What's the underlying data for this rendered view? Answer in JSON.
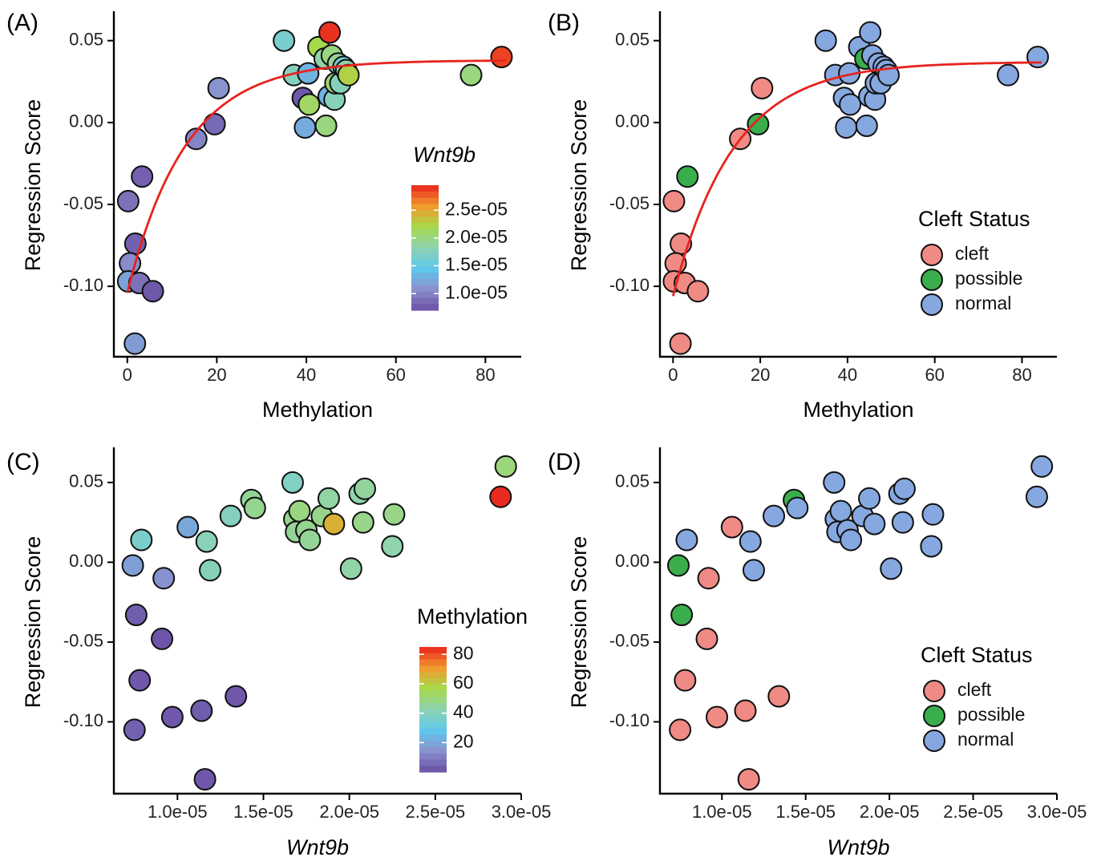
{
  "colors": {
    "cleft": "#f08a84",
    "possible": "#3aae4c",
    "normal": "#86a8e0",
    "fit_line": "#e8221e",
    "rainbow": [
      "#6a4fa5",
      "#8a90cc",
      "#5fc8ee",
      "#8fd3b0",
      "#a6d94a",
      "#f39a2c",
      "#e8221e"
    ]
  },
  "chart_data": [
    {
      "panel_label": "(A)",
      "type": "scatter",
      "xlabel": "Methylation",
      "ylabel": "Regression Score",
      "xlim": [
        -3,
        88
      ],
      "ylim": [
        -0.143,
        0.066
      ],
      "x_ticks": [
        0,
        20,
        40,
        60,
        80
      ],
      "x_tick_labels": [
        "0",
        "20",
        "40",
        "60",
        "80"
      ],
      "y_ticks": [
        0.05,
        0.0,
        -0.05,
        -0.1
      ],
      "y_tick_labels": [
        "0.05",
        "0.00",
        "-0.05",
        "-0.10"
      ],
      "fit_curve": {
        "y_max": 0.038,
        "y_min": -0.104,
        "rate": 0.077
      },
      "color_by": "Wnt9b",
      "legend": {
        "title": "Wnt9b",
        "type": "colorbar",
        "range": [
          7e-06,
          2.95e-05
        ],
        "tick_values": [
          2.5e-05,
          2e-05,
          1.5e-05,
          1e-05
        ],
        "tick_labels": [
          "2.5e-05",
          "2.0e-05",
          "1.5e-05",
          "1.0e-05"
        ]
      },
      "points": [
        {
          "x": 0.2,
          "y": -0.048,
          "wnt9b": 9e-06
        },
        {
          "x": 3.3,
          "y": -0.033,
          "wnt9b": 8e-06
        },
        {
          "x": 1.8,
          "y": -0.074,
          "wnt9b": 8e-06
        },
        {
          "x": 0.6,
          "y": -0.086,
          "wnt9b": 1.05e-05
        },
        {
          "x": 0.2,
          "y": -0.097,
          "wnt9b": 1.2e-05
        },
        {
          "x": 2.7,
          "y": -0.098,
          "wnt9b": 9e-06
        },
        {
          "x": 5.7,
          "y": -0.103,
          "wnt9b": 7.5e-06
        },
        {
          "x": 1.7,
          "y": -0.135,
          "wnt9b": 1.15e-05
        },
        {
          "x": 15.4,
          "y": -0.01,
          "wnt9b": 1e-05
        },
        {
          "x": 19.5,
          "y": -0.001,
          "wnt9b": 8.5e-06
        },
        {
          "x": 20.4,
          "y": 0.021,
          "wnt9b": 1.1e-05
        },
        {
          "x": 35.0,
          "y": 0.05,
          "wnt9b": 1.65e-05
        },
        {
          "x": 37.2,
          "y": 0.029,
          "wnt9b": 1.75e-05
        },
        {
          "x": 39.2,
          "y": 0.015,
          "wnt9b": 7.5e-06
        },
        {
          "x": 39.7,
          "y": -0.003,
          "wnt9b": 1.25e-05
        },
        {
          "x": 40.4,
          "y": 0.03,
          "wnt9b": 1.3e-05
        },
        {
          "x": 40.6,
          "y": 0.011,
          "wnt9b": 2.1e-05
        },
        {
          "x": 42.7,
          "y": 0.046,
          "wnt9b": 2.2e-05
        },
        {
          "x": 44.1,
          "y": 0.039,
          "wnt9b": 1.85e-05
        },
        {
          "x": 44.4,
          "y": -0.002,
          "wnt9b": 2e-05
        },
        {
          "x": 45.0,
          "y": 0.016,
          "wnt9b": 1.3e-05
        },
        {
          "x": 45.2,
          "y": 0.055,
          "wnt9b": 2.9e-05
        },
        {
          "x": 45.7,
          "y": 0.041,
          "wnt9b": 2e-05
        },
        {
          "x": 46.3,
          "y": 0.014,
          "wnt9b": 1.75e-05
        },
        {
          "x": 46.5,
          "y": 0.024,
          "wnt9b": 2.05e-05
        },
        {
          "x": 47.1,
          "y": 0.036,
          "wnt9b": 1.9e-05
        },
        {
          "x": 47.6,
          "y": 0.024,
          "wnt9b": 1.75e-05
        },
        {
          "x": 48.3,
          "y": 0.034,
          "wnt9b": 1.6e-05
        },
        {
          "x": 48.9,
          "y": 0.032,
          "wnt9b": 1.85e-05
        },
        {
          "x": 49.4,
          "y": 0.029,
          "wnt9b": 2.25e-05
        },
        {
          "x": 76.8,
          "y": 0.029,
          "wnt9b": 2e-05
        },
        {
          "x": 83.6,
          "y": 0.04,
          "wnt9b": 2.85e-05
        }
      ]
    },
    {
      "panel_label": "(B)",
      "type": "scatter",
      "xlabel": "Methylation",
      "ylabel": "Regression Score",
      "xlim": [
        -3,
        88
      ],
      "ylim": [
        -0.143,
        0.066
      ],
      "x_ticks": [
        0,
        20,
        40,
        60,
        80
      ],
      "x_tick_labels": [
        "0",
        "20",
        "40",
        "60",
        "80"
      ],
      "y_ticks": [
        0.05,
        0.0,
        -0.05,
        -0.1
      ],
      "y_tick_labels": [
        "0.05",
        "0.00",
        "-0.05",
        "-0.10"
      ],
      "fit_curve": {
        "y_max": 0.037,
        "y_min": -0.106,
        "rate": 0.072
      },
      "color_by": "Cleft Status",
      "legend": {
        "title": "Cleft Status",
        "type": "categorical",
        "entries": [
          {
            "label": "cleft",
            "status": "cleft"
          },
          {
            "label": "possible",
            "status": "possible"
          },
          {
            "label": "normal",
            "status": "normal"
          }
        ]
      },
      "points": [
        {
          "x": 0.2,
          "y": -0.048,
          "status": "cleft"
        },
        {
          "x": 3.3,
          "y": -0.033,
          "status": "possible"
        },
        {
          "x": 1.8,
          "y": -0.074,
          "status": "cleft"
        },
        {
          "x": 0.6,
          "y": -0.086,
          "status": "cleft"
        },
        {
          "x": 0.2,
          "y": -0.097,
          "status": "cleft"
        },
        {
          "x": 2.7,
          "y": -0.098,
          "status": "cleft"
        },
        {
          "x": 5.7,
          "y": -0.103,
          "status": "cleft"
        },
        {
          "x": 1.7,
          "y": -0.135,
          "status": "cleft"
        },
        {
          "x": 15.4,
          "y": -0.01,
          "status": "cleft"
        },
        {
          "x": 19.5,
          "y": -0.001,
          "status": "possible"
        },
        {
          "x": 20.4,
          "y": 0.021,
          "status": "cleft"
        },
        {
          "x": 35.0,
          "y": 0.05,
          "status": "normal"
        },
        {
          "x": 37.2,
          "y": 0.029,
          "status": "normal"
        },
        {
          "x": 39.2,
          "y": 0.015,
          "status": "normal"
        },
        {
          "x": 39.7,
          "y": -0.003,
          "status": "normal"
        },
        {
          "x": 40.4,
          "y": 0.03,
          "status": "normal"
        },
        {
          "x": 40.6,
          "y": 0.011,
          "status": "normal"
        },
        {
          "x": 42.7,
          "y": 0.046,
          "status": "normal"
        },
        {
          "x": 44.1,
          "y": 0.039,
          "status": "possible"
        },
        {
          "x": 44.4,
          "y": -0.002,
          "status": "normal"
        },
        {
          "x": 45.0,
          "y": 0.016,
          "status": "normal"
        },
        {
          "x": 45.2,
          "y": 0.055,
          "status": "normal"
        },
        {
          "x": 45.7,
          "y": 0.041,
          "status": "normal"
        },
        {
          "x": 46.3,
          "y": 0.014,
          "status": "normal"
        },
        {
          "x": 46.5,
          "y": 0.024,
          "status": "normal"
        },
        {
          "x": 47.1,
          "y": 0.036,
          "status": "normal"
        },
        {
          "x": 47.6,
          "y": 0.024,
          "status": "normal"
        },
        {
          "x": 48.3,
          "y": 0.034,
          "status": "normal"
        },
        {
          "x": 48.9,
          "y": 0.032,
          "status": "normal"
        },
        {
          "x": 49.4,
          "y": 0.029,
          "status": "normal"
        },
        {
          "x": 76.8,
          "y": 0.029,
          "status": "normal"
        },
        {
          "x": 83.6,
          "y": 0.04,
          "status": "normal"
        }
      ]
    },
    {
      "panel_label": "(C)",
      "type": "scatter",
      "xlabel": "Wnt9b",
      "ylabel": "Regression Score",
      "xlim": [
        6.3e-06,
        3e-05
      ],
      "ylim": [
        -0.145,
        0.07
      ],
      "x_ticks": [
        1e-05,
        1.5e-05,
        2e-05,
        2.5e-05,
        3e-05
      ],
      "x_tick_labels": [
        "1.0e-05",
        "1.5e-05",
        "2.0e-05",
        "2.5e-05",
        "3.0e-05"
      ],
      "y_ticks": [
        0.05,
        0.0,
        -0.05,
        -0.1
      ],
      "y_tick_labels": [
        "0.05",
        "0.00",
        "-0.05",
        "-0.10"
      ],
      "color_by": "Methylation",
      "legend": {
        "title": "Methylation",
        "type": "colorbar",
        "range": [
          0,
          85
        ],
        "tick_values": [
          80,
          60,
          40,
          20
        ],
        "tick_labels": [
          "80",
          "60",
          "40",
          "20"
        ]
      },
      "points": [
        {
          "x": 7.4e-06,
          "y": -0.002,
          "meth": 18
        },
        {
          "x": 7.9e-06,
          "y": 0.014,
          "meth": 36
        },
        {
          "x": 7.6e-06,
          "y": -0.033,
          "meth": 3
        },
        {
          "x": 7.8e-06,
          "y": -0.074,
          "meth": 2
        },
        {
          "x": 7.5e-06,
          "y": -0.105,
          "meth": 4
        },
        {
          "x": 9.1e-06,
          "y": -0.048,
          "meth": 1
        },
        {
          "x": 9.2e-06,
          "y": -0.01,
          "meth": 15
        },
        {
          "x": 9.7e-06,
          "y": -0.097,
          "meth": 2
        },
        {
          "x": 1.06e-05,
          "y": 0.022,
          "meth": 20
        },
        {
          "x": 1.14e-05,
          "y": -0.093,
          "meth": 3
        },
        {
          "x": 1.16e-05,
          "y": -0.136,
          "meth": 2
        },
        {
          "x": 1.17e-05,
          "y": 0.013,
          "meth": 41
        },
        {
          "x": 1.19e-05,
          "y": -0.005,
          "meth": 40
        },
        {
          "x": 1.31e-05,
          "y": 0.029,
          "meth": 39
        },
        {
          "x": 1.34e-05,
          "y": -0.084,
          "meth": 2
        },
        {
          "x": 1.43e-05,
          "y": 0.039,
          "meth": 46
        },
        {
          "x": 1.45e-05,
          "y": 0.034,
          "meth": 47
        },
        {
          "x": 1.67e-05,
          "y": 0.05,
          "meth": 38
        },
        {
          "x": 1.68e-05,
          "y": 0.027,
          "meth": 47
        },
        {
          "x": 1.69e-05,
          "y": 0.019,
          "meth": 46
        },
        {
          "x": 1.71e-05,
          "y": 0.032,
          "meth": 49
        },
        {
          "x": 1.75e-05,
          "y": 0.02,
          "meth": 47
        },
        {
          "x": 1.77e-05,
          "y": 0.014,
          "meth": 46
        },
        {
          "x": 1.84e-05,
          "y": 0.029,
          "meth": 48
        },
        {
          "x": 1.88e-05,
          "y": 0.04,
          "meth": 44
        },
        {
          "x": 1.91e-05,
          "y": 0.024,
          "meth": 66
        },
        {
          "x": 2.01e-05,
          "y": -0.004,
          "meth": 44
        },
        {
          "x": 2.06e-05,
          "y": 0.043,
          "meth": 43
        },
        {
          "x": 2.09e-05,
          "y": 0.046,
          "meth": 45
        },
        {
          "x": 2.08e-05,
          "y": 0.025,
          "meth": 48
        },
        {
          "x": 2.26e-05,
          "y": 0.03,
          "meth": 48
        },
        {
          "x": 2.25e-05,
          "y": 0.01,
          "meth": 43
        },
        {
          "x": 2.88e-05,
          "y": 0.041,
          "meth": 84
        },
        {
          "x": 2.91e-05,
          "y": 0.06,
          "meth": 50
        }
      ]
    },
    {
      "panel_label": "(D)",
      "type": "scatter",
      "xlabel": "Wnt9b",
      "ylabel": "Regression Score",
      "xlim": [
        6.3e-06,
        3e-05
      ],
      "ylim": [
        -0.145,
        0.07
      ],
      "x_ticks": [
        1e-05,
        1.5e-05,
        2e-05,
        2.5e-05,
        3e-05
      ],
      "x_tick_labels": [
        "1.0e-05",
        "1.5e-05",
        "2.0e-05",
        "2.5e-05",
        "3.0e-05"
      ],
      "y_ticks": [
        0.05,
        0.0,
        -0.05,
        -0.1
      ],
      "y_tick_labels": [
        "0.05",
        "0.00",
        "-0.05",
        "-0.10"
      ],
      "color_by": "Cleft Status",
      "legend": {
        "title": "Cleft Status",
        "type": "categorical",
        "entries": [
          {
            "label": "cleft",
            "status": "cleft"
          },
          {
            "label": "possible",
            "status": "possible"
          },
          {
            "label": "normal",
            "status": "normal"
          }
        ]
      },
      "points": [
        {
          "x": 7.4e-06,
          "y": -0.002,
          "status": "possible"
        },
        {
          "x": 7.9e-06,
          "y": 0.014,
          "status": "normal"
        },
        {
          "x": 7.6e-06,
          "y": -0.033,
          "status": "possible"
        },
        {
          "x": 7.8e-06,
          "y": -0.074,
          "status": "cleft"
        },
        {
          "x": 7.5e-06,
          "y": -0.105,
          "status": "cleft"
        },
        {
          "x": 9.1e-06,
          "y": -0.048,
          "status": "cleft"
        },
        {
          "x": 9.2e-06,
          "y": -0.01,
          "status": "cleft"
        },
        {
          "x": 9.7e-06,
          "y": -0.097,
          "status": "cleft"
        },
        {
          "x": 1.06e-05,
          "y": 0.022,
          "status": "cleft"
        },
        {
          "x": 1.14e-05,
          "y": -0.093,
          "status": "cleft"
        },
        {
          "x": 1.16e-05,
          "y": -0.136,
          "status": "cleft"
        },
        {
          "x": 1.17e-05,
          "y": 0.013,
          "status": "normal"
        },
        {
          "x": 1.19e-05,
          "y": -0.005,
          "status": "normal"
        },
        {
          "x": 1.31e-05,
          "y": 0.029,
          "status": "normal"
        },
        {
          "x": 1.34e-05,
          "y": -0.084,
          "status": "cleft"
        },
        {
          "x": 1.43e-05,
          "y": 0.039,
          "status": "possible"
        },
        {
          "x": 1.45e-05,
          "y": 0.034,
          "status": "normal"
        },
        {
          "x": 1.67e-05,
          "y": 0.05,
          "status": "normal"
        },
        {
          "x": 1.68e-05,
          "y": 0.027,
          "status": "normal"
        },
        {
          "x": 1.69e-05,
          "y": 0.019,
          "status": "normal"
        },
        {
          "x": 1.71e-05,
          "y": 0.032,
          "status": "normal"
        },
        {
          "x": 1.75e-05,
          "y": 0.02,
          "status": "normal"
        },
        {
          "x": 1.77e-05,
          "y": 0.014,
          "status": "normal"
        },
        {
          "x": 1.84e-05,
          "y": 0.029,
          "status": "normal"
        },
        {
          "x": 1.88e-05,
          "y": 0.04,
          "status": "normal"
        },
        {
          "x": 1.91e-05,
          "y": 0.024,
          "status": "normal"
        },
        {
          "x": 2.01e-05,
          "y": -0.004,
          "status": "normal"
        },
        {
          "x": 2.06e-05,
          "y": 0.043,
          "status": "normal"
        },
        {
          "x": 2.09e-05,
          "y": 0.046,
          "status": "normal"
        },
        {
          "x": 2.08e-05,
          "y": 0.025,
          "status": "normal"
        },
        {
          "x": 2.26e-05,
          "y": 0.03,
          "status": "normal"
        },
        {
          "x": 2.25e-05,
          "y": 0.01,
          "status": "normal"
        },
        {
          "x": 2.88e-05,
          "y": 0.041,
          "status": "normal"
        },
        {
          "x": 2.91e-05,
          "y": 0.06,
          "status": "normal"
        }
      ]
    }
  ]
}
